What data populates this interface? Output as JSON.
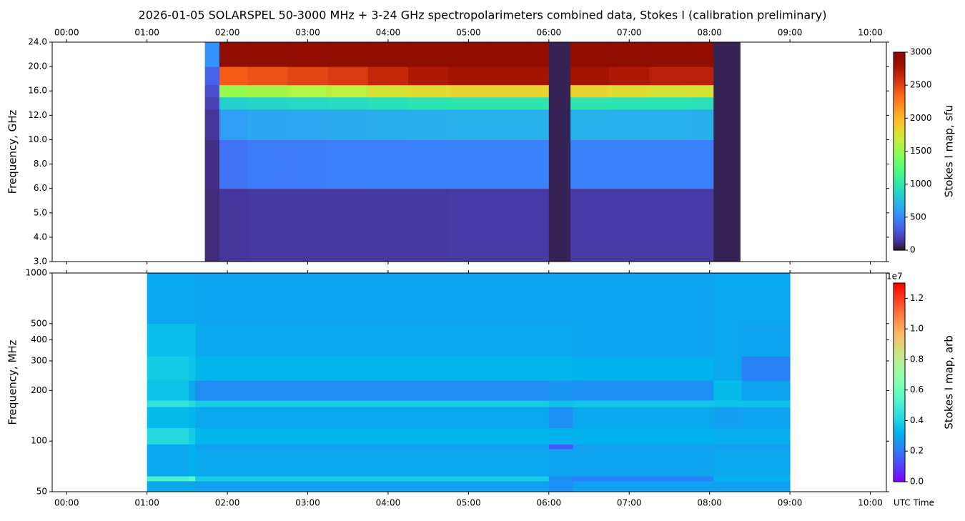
{
  "chart_data": [
    {
      "type": "heatmap",
      "title": "2026-01-05  SOLARSPEL  50-3000 MHz  +  3-24 GHz  spectropolarimeters combined data,  Stokes I  (calibration preliminary)",
      "y_label": "Frequency, GHz",
      "colorbar_label": "Stokes I map, sfu",
      "colormap": "turbo",
      "clim": [
        0,
        3000
      ],
      "cticks": [
        0,
        500,
        1000,
        1500,
        2000,
        2500,
        3000
      ],
      "xlim": [
        -0.18,
        10.2
      ],
      "xticks": [
        {
          "value": 0,
          "label": "00:00"
        },
        {
          "value": 1,
          "label": "01:00"
        },
        {
          "value": 2,
          "label": "02:00"
        },
        {
          "value": 3,
          "label": "03:00"
        },
        {
          "value": 4,
          "label": "04:00"
        },
        {
          "value": 5,
          "label": "05:00"
        },
        {
          "value": 6,
          "label": "06:00"
        },
        {
          "value": 7,
          "label": "07:00"
        },
        {
          "value": 8,
          "label": "08:00"
        },
        {
          "value": 9,
          "label": "09:00"
        },
        {
          "value": 10,
          "label": "10:00"
        }
      ],
      "ylim": [
        3,
        24
      ],
      "yticks": [
        {
          "value": 3,
          "label": "3.0"
        },
        {
          "value": 4,
          "label": "4.0"
        },
        {
          "value": 5,
          "label": "5.0"
        },
        {
          "value": 6,
          "label": "6.0"
        },
        {
          "value": 8,
          "label": "8.0"
        },
        {
          "value": 10,
          "label": "10.0"
        },
        {
          "value": 12,
          "label": "12.0"
        },
        {
          "value": 16,
          "label": "16.0"
        },
        {
          "value": 20,
          "label": "20.0"
        },
        {
          "value": 24,
          "label": "24.0"
        }
      ],
      "x_edges": [
        1.72,
        1.9,
        2.25,
        2.75,
        3.25,
        3.75,
        4.25,
        4.75,
        5.25,
        5.75,
        6.0,
        6.27,
        6.75,
        7.25,
        7.75,
        8.05,
        8.38
      ],
      "y_edges": [
        3,
        6,
        10,
        13,
        15,
        17,
        20,
        24
      ],
      "values": [
        [
          100,
          150,
          160,
          160,
          160,
          160,
          160,
          170,
          170,
          170,
          60,
          170,
          170,
          170,
          170,
          60
        ],
        [
          120,
          420,
          450,
          450,
          460,
          470,
          470,
          480,
          480,
          480,
          60,
          480,
          480,
          480,
          470,
          60
        ],
        [
          150,
          600,
          640,
          650,
          660,
          670,
          680,
          690,
          690,
          690,
          60,
          690,
          690,
          690,
          680,
          60
        ],
        [
          200,
          850,
          880,
          900,
          920,
          950,
          980,
          1000,
          1000,
          1000,
          60,
          990,
          980,
          970,
          960,
          60
        ],
        [
          250,
          1500,
          1550,
          1600,
          1650,
          1750,
          1800,
          1850,
          1850,
          1850,
          60,
          1850,
          1800,
          1750,
          1750,
          60
        ],
        [
          350,
          2400,
          2450,
          2500,
          2550,
          2650,
          2750,
          2800,
          2800,
          2800,
          60,
          2800,
          2750,
          2700,
          2700,
          60
        ],
        [
          550,
          3000,
          3000,
          3000,
          3000,
          3000,
          3000,
          3000,
          3000,
          3000,
          60,
          3000,
          3000,
          3000,
          3000,
          60
        ]
      ]
    },
    {
      "type": "heatmap",
      "y_label": "Frequency, MHz",
      "x_label": "UTC Time",
      "colorbar_label": "Stokes I map, arb",
      "colorbar_offset": "1e7",
      "colormap": "rainbow",
      "clim": [
        0,
        13000000
      ],
      "cticks": [
        {
          "value": 0,
          "label": "0.0"
        },
        {
          "value": 2000000,
          "label": "0.2"
        },
        {
          "value": 4000000,
          "label": "0.4"
        },
        {
          "value": 6000000,
          "label": "0.6"
        },
        {
          "value": 8000000,
          "label": "0.8"
        },
        {
          "value": 10000000,
          "label": "1.0"
        },
        {
          "value": 12000000,
          "label": "1.2"
        }
      ],
      "xlim": [
        -0.18,
        10.2
      ],
      "xticks": [
        {
          "value": 0,
          "label": "00:00"
        },
        {
          "value": 1,
          "label": "01:00"
        },
        {
          "value": 2,
          "label": "02:00"
        },
        {
          "value": 3,
          "label": "03:00"
        },
        {
          "value": 4,
          "label": "04:00"
        },
        {
          "value": 5,
          "label": "05:00"
        },
        {
          "value": 6,
          "label": "06:00"
        },
        {
          "value": 7,
          "label": "07:00"
        },
        {
          "value": 8,
          "label": "08:00"
        },
        {
          "value": 9,
          "label": "09:00"
        },
        {
          "value": 10,
          "label": "10:00"
        }
      ],
      "ylim": [
        50,
        1000
      ],
      "log_y": true,
      "yticks": [
        50,
        100,
        200,
        300,
        400,
        500,
        1000
      ],
      "x_edges": [
        1.0,
        1.52,
        1.6,
        6.0,
        6.3,
        8.05,
        8.4,
        9.0
      ],
      "y_edges": [
        50,
        58,
        62,
        90,
        96,
        120,
        160,
        175,
        230,
        320,
        500,
        1000
      ],
      "values": [
        [
          3000000,
          3000000,
          2800000,
          2500000,
          2800000,
          2800000,
          2800000
        ],
        [
          5200000,
          5500000,
          3800000,
          2400000,
          2200000,
          3200000,
          3200000
        ],
        [
          3000000,
          3200000,
          3000000,
          2900000,
          2900000,
          3000000,
          3000000
        ],
        [
          3000000,
          3200000,
          2800000,
          1500000,
          2800000,
          2800000,
          2800000
        ],
        [
          4200000,
          3800000,
          3300000,
          3200000,
          3200000,
          3100000,
          3100000
        ],
        [
          3400000,
          3300000,
          3000000,
          2500000,
          3000000,
          2800000,
          2900000
        ],
        [
          4500000,
          4200000,
          3800000,
          3600000,
          3700000,
          3600000,
          3600000
        ],
        [
          3600000,
          3000000,
          2400000,
          2600000,
          2500000,
          3400000,
          2900000
        ],
        [
          3800000,
          3600000,
          3300000,
          3300000,
          3200000,
          3000000,
          2200000
        ],
        [
          3500000,
          3500000,
          3000000,
          3000000,
          2900000,
          3000000,
          2900000
        ],
        [
          3000000,
          3000000,
          2900000,
          2900000,
          2900000,
          3000000,
          3000000
        ]
      ]
    }
  ]
}
